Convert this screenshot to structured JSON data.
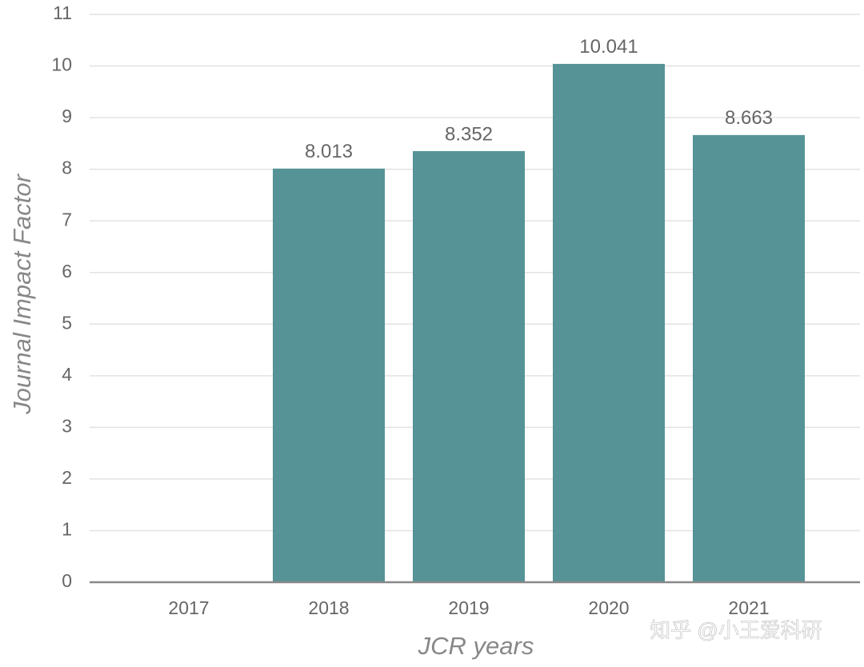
{
  "chart_data": {
    "type": "bar",
    "x_label": "JCR years",
    "y_label": "Journal Impact Factor",
    "categories": [
      "2017",
      "2018",
      "2019",
      "2020",
      "2021"
    ],
    "values": [
      null,
      8.013,
      8.352,
      10.041,
      8.663
    ],
    "color": "#559396",
    "ylim": [
      0,
      11
    ],
    "yticks": [
      0,
      1,
      2,
      3,
      4,
      5,
      6,
      7,
      8,
      9,
      10,
      11
    ],
    "grid": true,
    "watermark": "知乎 @小王爱科研"
  }
}
